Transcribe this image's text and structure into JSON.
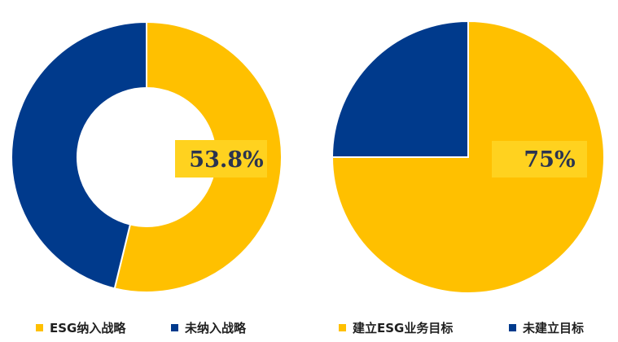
{
  "chart_data": [
    {
      "type": "pie",
      "variant": "donut",
      "title": "",
      "slices": [
        {
          "label": "ESG纳入战略",
          "value": 53.8,
          "color": "#FFC000"
        },
        {
          "label": "未纳入战略",
          "value": 46.2,
          "color": "#003A8C"
        }
      ],
      "data_label": "53.8%",
      "legend": {
        "placement": "bottom"
      }
    },
    {
      "type": "pie",
      "title": "",
      "slices": [
        {
          "label": "建立ESG业务目标",
          "value": 75,
          "color": "#FFC000"
        },
        {
          "label": "未建立目标",
          "value": 25,
          "color": "#003A8C"
        }
      ],
      "data_label": "75%",
      "legend": {
        "placement": "bottom"
      }
    }
  ],
  "colors": {
    "primary": "#FFC000",
    "secondary": "#003A8C",
    "label_box": "#FFD21F",
    "label_text": "#2A3450"
  }
}
